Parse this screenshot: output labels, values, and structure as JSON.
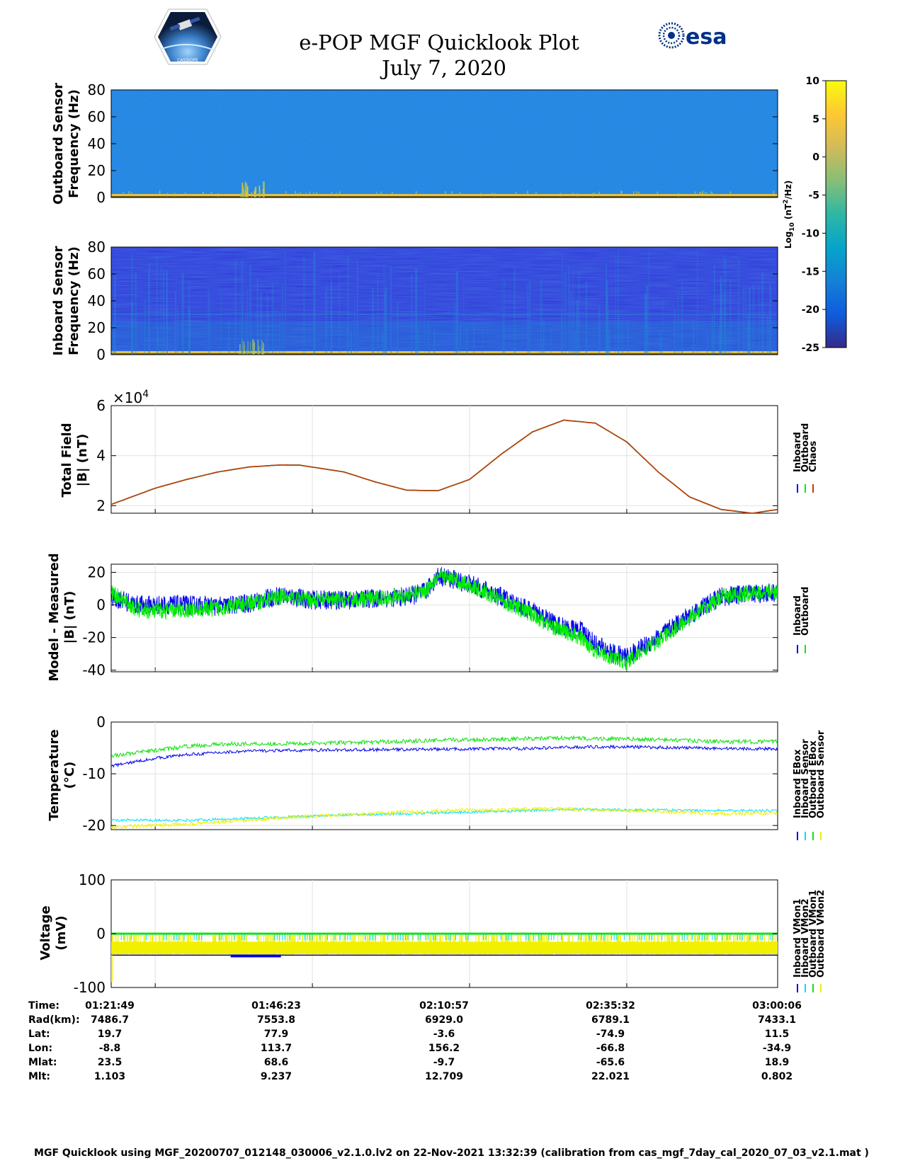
{
  "title": "e-POP MGF Quicklook Plot",
  "date": "July 7, 2020",
  "logos": {
    "left": "cassiope-mission-patch",
    "left_text": "CASSIOPE",
    "right_text": "esa"
  },
  "colorbar": {
    "label_prefix": "Log",
    "label_sub": "10",
    "label_unit": "(nT",
    "label_sup": "2",
    "label_end": "/Hz)",
    "range": [
      -25,
      10
    ],
    "ticks": [
      10,
      5,
      0,
      -5,
      -10,
      -15,
      -20,
      -25
    ],
    "colors": [
      "#352a87",
      "#0f5cdd",
      "#1481d6",
      "#06a4ca",
      "#2eb7a4",
      "#87bf77",
      "#d1bb59",
      "#fec832",
      "#f9fb0e"
    ]
  },
  "chart_data": [
    {
      "type": "heatmap",
      "id": "outboard-spectrogram",
      "ylabel_line1": "Outboard Sensor",
      "ylabel_line2": "Frequency (Hz)",
      "ylim": [
        0,
        80
      ],
      "yticks": [
        0,
        20,
        40,
        60,
        80
      ],
      "background_level": -13,
      "low_freq_level": 3
    },
    {
      "type": "heatmap",
      "id": "inboard-spectrogram",
      "ylabel_line1": "Inboard Sensor",
      "ylabel_line2": "Frequency (Hz)",
      "ylim": [
        0,
        80
      ],
      "yticks": [
        0,
        20,
        40,
        60,
        80
      ],
      "background_level": -22,
      "low_freq_level": 3
    },
    {
      "type": "line",
      "id": "total-field",
      "ylabel_line1": "Total Field",
      "ylabel_line2": "|B| (nT)",
      "exponent_label": "×10",
      "exponent_power": "4",
      "ylim": [
        1.7,
        6.0
      ],
      "yticks": [
        2,
        4,
        6
      ],
      "xgrid_minutes": [
        0,
        25,
        50,
        75
      ],
      "x_minutes": [
        -7,
        0,
        5,
        10,
        15,
        20,
        23,
        30,
        35,
        40,
        45,
        50,
        55,
        60,
        65,
        70,
        75,
        80,
        85,
        90,
        95,
        99
      ],
      "series": [
        {
          "name": "Inboard",
          "color": "#0000ff",
          "values": [
            2.05,
            2.7,
            3.05,
            3.35,
            3.55,
            3.63,
            3.62,
            3.35,
            2.95,
            2.62,
            2.6,
            3.05,
            4.05,
            4.95,
            5.42,
            5.3,
            4.55,
            3.35,
            2.35,
            1.85,
            1.7,
            1.85
          ]
        },
        {
          "name": "Outboard",
          "color": "#00ee00",
          "values": [
            2.05,
            2.7,
            3.05,
            3.35,
            3.55,
            3.63,
            3.62,
            3.35,
            2.95,
            2.62,
            2.6,
            3.05,
            4.05,
            4.95,
            5.42,
            5.3,
            4.55,
            3.35,
            2.35,
            1.85,
            1.7,
            1.85
          ]
        },
        {
          "name": "Chaos",
          "color": "#c43c0a",
          "values": [
            2.05,
            2.7,
            3.05,
            3.35,
            3.55,
            3.63,
            3.62,
            3.35,
            2.95,
            2.62,
            2.6,
            3.05,
            4.05,
            4.95,
            5.42,
            5.3,
            4.55,
            3.35,
            2.35,
            1.85,
            1.7,
            1.85
          ]
        }
      ],
      "legend": [
        "Inboard",
        "Outboard",
        "Chaos"
      ]
    },
    {
      "type": "line",
      "id": "model-minus-measured",
      "ylabel_line1": "Model - Measured",
      "ylabel_line2": "|B| (nT)",
      "ylim": [
        -41,
        25
      ],
      "yticks": [
        20,
        0,
        -20,
        -40
      ],
      "xgrid_minutes": [
        0,
        25,
        50,
        75
      ],
      "x_minutes": [
        -7,
        -3,
        0,
        5,
        10,
        15,
        20,
        25,
        30,
        35,
        40,
        43,
        45,
        47,
        50,
        55,
        60,
        63,
        65,
        68,
        70,
        73,
        75,
        80,
        85,
        90,
        95,
        99
      ],
      "series": [
        {
          "name": "Inboard",
          "color": "#0000ee",
          "spread": 6,
          "values": [
            5,
            0,
            0,
            0,
            -1,
            1,
            6,
            3,
            3,
            4,
            5,
            8,
            18,
            16,
            13,
            5,
            -4,
            -10,
            -14,
            -16,
            -24,
            -30,
            -32,
            -20,
            -6,
            5,
            7,
            8
          ]
        },
        {
          "name": "Outboard",
          "color": "#00ee00",
          "spread": 5,
          "values": [
            8,
            -3,
            -4,
            -3,
            -2,
            1,
            5,
            3,
            3,
            4,
            6,
            9,
            18,
            16,
            12,
            3,
            -6,
            -13,
            -16,
            -21,
            -28,
            -33,
            -35,
            -22,
            -8,
            5,
            7,
            8
          ]
        }
      ],
      "legend": [
        "Inboard",
        "Outboard"
      ]
    },
    {
      "type": "line",
      "id": "temperature",
      "ylabel_line1": "Temperature",
      "ylabel_line2": "(°C)",
      "ylim": [
        -20.8,
        0
      ],
      "yticks": [
        0,
        -10,
        -20
      ],
      "xgrid_minutes": [
        0,
        25,
        50,
        75
      ],
      "x_minutes": [
        -7,
        0,
        5,
        10,
        15,
        20,
        30,
        40,
        50,
        60,
        65,
        70,
        75,
        80,
        85,
        90,
        99
      ],
      "series": [
        {
          "name": "Inboard EBox",
          "color": "#0000ee",
          "spread": 0.3,
          "values": [
            -8.5,
            -7.0,
            -6.3,
            -5.9,
            -5.6,
            -5.5,
            -5.4,
            -5.3,
            -5.2,
            -5.1,
            -4.9,
            -4.8,
            -4.8,
            -4.9,
            -5.0,
            -5.1,
            -5.2
          ]
        },
        {
          "name": "Inboard Sensor",
          "color": "#00e0ff",
          "spread": 0.25,
          "values": [
            -19.0,
            -19.0,
            -19.0,
            -18.8,
            -18.6,
            -18.4,
            -18.0,
            -17.7,
            -17.4,
            -17.1,
            -16.9,
            -16.9,
            -17.0,
            -17.0,
            -17.1,
            -17.1,
            -17.1
          ]
        },
        {
          "name": "Outboard EBox",
          "color": "#11e011",
          "spread": 0.4,
          "values": [
            -6.5,
            -5.5,
            -4.7,
            -4.3,
            -4.2,
            -4.2,
            -4.0,
            -3.7,
            -3.4,
            -3.2,
            -3.1,
            -3.2,
            -3.3,
            -3.4,
            -3.6,
            -3.8,
            -3.8
          ]
        },
        {
          "name": "Outboard Sensor",
          "color": "#f0f000",
          "spread": 0.35,
          "values": [
            -20.3,
            -20.0,
            -19.7,
            -19.4,
            -19.0,
            -18.5,
            -17.9,
            -17.4,
            -17.0,
            -16.8,
            -16.8,
            -16.9,
            -17.1,
            -17.3,
            -17.5,
            -17.7,
            -17.7
          ]
        }
      ],
      "legend": [
        "Inboard EBox",
        "Inboard Sensor",
        "Outboard EBox",
        "Outboard Sensor"
      ]
    },
    {
      "type": "line",
      "id": "voltage",
      "ylabel_line1": "Voltage",
      "ylabel_line2": "(mV)",
      "ylim": [
        -100,
        100
      ],
      "yticks": [
        100,
        0,
        -100
      ],
      "xgrid_minutes": [
        0,
        25,
        50,
        75
      ],
      "x_minutes": [
        -7,
        99
      ],
      "series": [
        {
          "name": "Inboard VMon1",
          "color": "#0000ee",
          "values": [
            -40,
            -40
          ]
        },
        {
          "name": "Inboard VMon2",
          "color": "#00e0ff",
          "values": [
            -5,
            -5
          ]
        },
        {
          "name": "Outboard VMon1",
          "color": "#11e011",
          "values": [
            0,
            0
          ]
        },
        {
          "name": "Outboard VMon2",
          "color": "#f0f000",
          "values": [
            -25,
            -25
          ]
        }
      ],
      "legend": [
        "Inboard VMon1",
        "Inboard VMon2",
        "Outboard VMon1",
        "Outboard VMon2"
      ]
    }
  ],
  "ephemeris": {
    "row_labels": [
      "Time:",
      "Rad(km):",
      "Lat:",
      "Lon:",
      "Mlat:",
      "Mlt:"
    ],
    "columns": [
      [
        "01:21:49",
        "7486.7",
        "19.7",
        "-8.8",
        "23.5",
        "1.103"
      ],
      [
        "01:46:23",
        "7553.8",
        "77.9",
        "113.7",
        "68.6",
        "9.237"
      ],
      [
        "02:10:57",
        "6929.0",
        "-3.6",
        "156.2",
        "-9.7",
        "12.709"
      ],
      [
        "02:35:32",
        "6789.1",
        "-74.9",
        "-66.8",
        "-65.6",
        "22.021"
      ],
      [
        "03:00:06",
        "7433.1",
        "11.5",
        "-34.9",
        "18.9",
        "0.802"
      ]
    ]
  },
  "footer": "MGF Quicklook using MGF_20200707_012148_030006_v2.1.0.lv2 on 22-Nov-2021 13:32:39 (calibration from cas_mgf_7day_cal_2020_07_03_v2.1.mat )"
}
